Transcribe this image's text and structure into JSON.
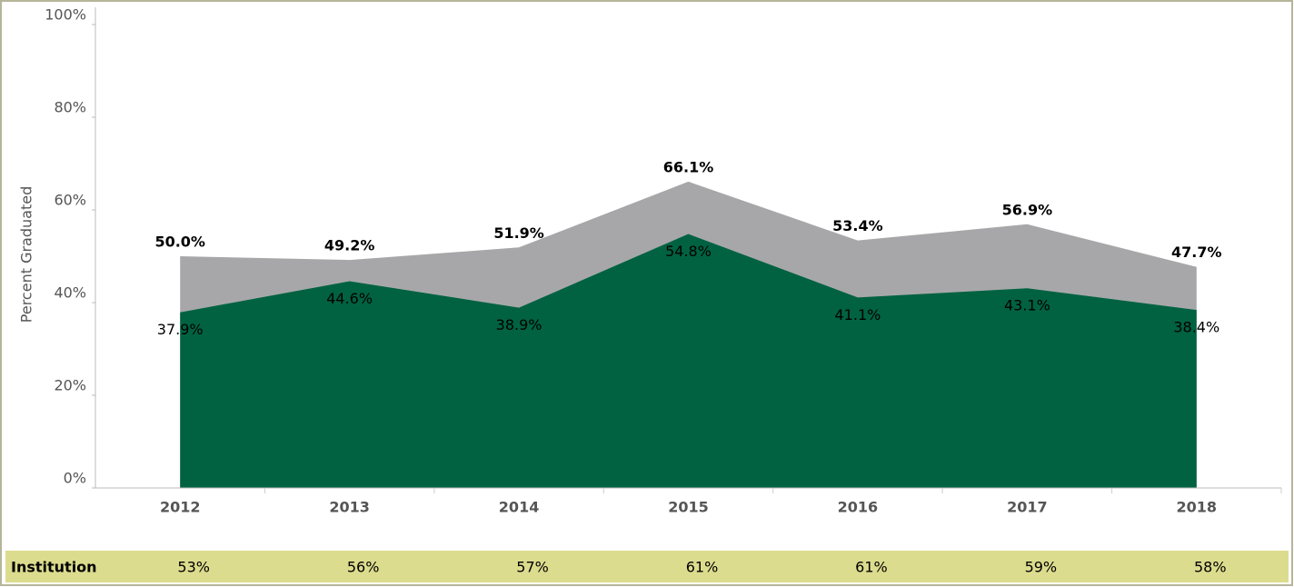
{
  "chart_data": {
    "type": "area",
    "y_axis_label": "Percent Graduated",
    "categories": [
      "2012",
      "2013",
      "2014",
      "2015",
      "2016",
      "2017",
      "2018"
    ],
    "series": [
      {
        "color": "#a7a7a9",
        "values": [
          50.0,
          49.2,
          51.9,
          66.1,
          53.4,
          56.9,
          47.7
        ],
        "value_labels": [
          "50.0%",
          "49.2%",
          "51.9%",
          "66.1%",
          "53.4%",
          "56.9%",
          "47.7%"
        ]
      },
      {
        "color": "#006241",
        "values": [
          37.9,
          44.6,
          38.9,
          54.8,
          41.1,
          43.1,
          38.4
        ],
        "value_labels": [
          "37.9%",
          "44.6%",
          "38.9%",
          "54.8%",
          "41.1%",
          "43.1%",
          "38.4%"
        ]
      }
    ],
    "ylim": [
      0,
      100
    ],
    "yticks": [
      {
        "value": 0,
        "label": "0%"
      },
      {
        "value": 20,
        "label": "20%"
      },
      {
        "value": 40,
        "label": "40%"
      },
      {
        "value": 60,
        "label": "60%"
      },
      {
        "value": 80,
        "label": "80%"
      },
      {
        "value": 100,
        "label": "100%"
      }
    ],
    "grid": false,
    "footer_row": {
      "label": "Institution",
      "cells": [
        "53%",
        "56%",
        "57%",
        "61%",
        "61%",
        "59%",
        "58%"
      ]
    }
  }
}
